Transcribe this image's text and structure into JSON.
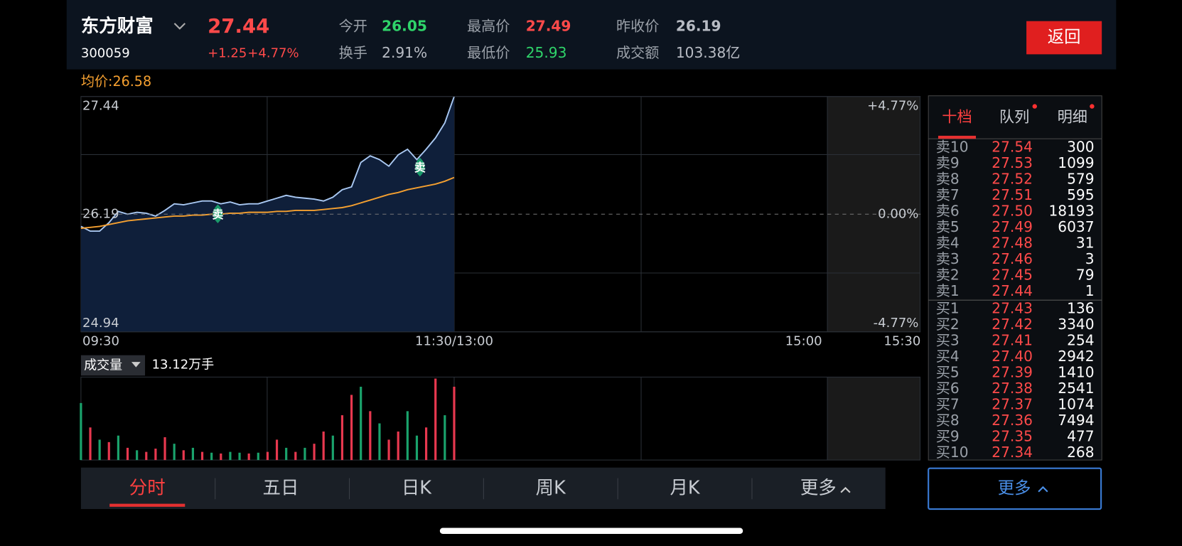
{
  "header": {
    "name": "东方财富",
    "code": "300059",
    "price": "27.44",
    "change": "+1.25",
    "change_pct": "+4.77%",
    "stats": [
      {
        "label": "今开",
        "value": "26.05",
        "color": "#2fd46a"
      },
      {
        "label": "换手",
        "value": "2.91%",
        "color": "#b8bcc4"
      },
      {
        "label": "最高价",
        "value": "27.49",
        "color": "#ff4a4a"
      },
      {
        "label": "最低价",
        "value": "25.93",
        "color": "#2fd46a"
      },
      {
        "label": "昨收价",
        "value": "26.19",
        "color": "#b8bcc4"
      },
      {
        "label": "成交额",
        "value": "103.38亿",
        "color": "#b8bcc4"
      }
    ],
    "back_button": "返回"
  },
  "chart_data": {
    "type": "line",
    "avg_label": "均价:26.58",
    "x": [
      0,
      3,
      6,
      9,
      12,
      15,
      18,
      21,
      24,
      27,
      30,
      33,
      36,
      39,
      42,
      45,
      48,
      51,
      54,
      57,
      60,
      63,
      66,
      69,
      72,
      75,
      78,
      81,
      84,
      87,
      90,
      93,
      96,
      99,
      102,
      105,
      108,
      111,
      114,
      117,
      120
    ],
    "xlim": [
      0,
      270
    ],
    "xticks": [
      {
        "value": 0,
        "label": "09:30"
      },
      {
        "value": 120,
        "label": "11:30/13:00"
      },
      {
        "value": 240,
        "label": "15:00"
      },
      {
        "value": 270,
        "label": "15:30"
      }
    ],
    "ylim": [
      24.94,
      27.44
    ],
    "yticks": [
      27.44,
      26.19,
      24.94
    ],
    "y2lim": [
      -4.77,
      4.77
    ],
    "y2ticks": [
      {
        "value": 4.77,
        "label": "+4.77%"
      },
      {
        "value": 0,
        "label": "0.00%"
      },
      {
        "value": -4.77,
        "label": "-4.77%"
      }
    ],
    "series": [
      {
        "color": "#a9c8f2",
        "values": [
          26.06,
          26.01,
          26.01,
          26.1,
          26.22,
          26.19,
          26.21,
          26.2,
          26.17,
          26.23,
          26.3,
          26.29,
          26.31,
          26.33,
          26.33,
          26.3,
          26.32,
          26.29,
          26.3,
          26.3,
          26.33,
          26.36,
          26.39,
          26.37,
          26.36,
          26.35,
          26.33,
          26.37,
          26.45,
          26.48,
          26.74,
          26.81,
          26.77,
          26.7,
          26.82,
          26.88,
          26.77,
          26.88,
          27.0,
          27.16,
          27.44
        ]
      },
      {
        "color": "#f5a030",
        "values": [
          26.04,
          26.05,
          26.06,
          26.08,
          26.1,
          26.12,
          26.13,
          26.14,
          26.15,
          26.16,
          26.17,
          26.17,
          26.18,
          26.18,
          26.19,
          26.19,
          26.2,
          26.2,
          26.21,
          26.21,
          26.21,
          26.22,
          26.22,
          26.23,
          26.23,
          26.23,
          26.24,
          26.25,
          26.26,
          26.28,
          26.31,
          26.34,
          26.37,
          26.4,
          26.42,
          26.45,
          26.47,
          26.49,
          26.51,
          26.54,
          26.58
        ]
      }
    ],
    "markers": [
      {
        "x": 44,
        "label": "卖"
      },
      {
        "x": 109,
        "label": "卖"
      }
    ],
    "volume": {
      "label": "成交量",
      "total": "13.12万手",
      "values": [
        70,
        40,
        25,
        22,
        30,
        15,
        12,
        10,
        14,
        28,
        20,
        12,
        15,
        10,
        9,
        8,
        10,
        9,
        8,
        9,
        10,
        25,
        15,
        10,
        15,
        20,
        35,
        30,
        55,
        80,
        90,
        60,
        45,
        25,
        35,
        60,
        30,
        40,
        100,
        55,
        90
      ],
      "up": [
        false,
        true,
        false,
        true,
        false,
        true,
        false,
        true,
        true,
        true,
        false,
        true,
        false,
        true,
        false,
        true,
        false,
        false,
        true,
        false,
        true,
        true,
        false,
        true,
        false,
        true,
        true,
        false,
        true,
        true,
        false,
        true,
        false,
        true,
        true,
        false,
        false,
        true,
        true,
        false,
        true
      ]
    }
  },
  "order_book": {
    "tabs": [
      "十档",
      "队列",
      "明细"
    ],
    "asks": [
      {
        "label": "卖10",
        "price": "27.54",
        "volume": "300"
      },
      {
        "label": "卖9",
        "price": "27.53",
        "volume": "1099"
      },
      {
        "label": "卖8",
        "price": "27.52",
        "volume": "579"
      },
      {
        "label": "卖7",
        "price": "27.51",
        "volume": "595"
      },
      {
        "label": "卖6",
        "price": "27.50",
        "volume": "18193"
      },
      {
        "label": "卖5",
        "price": "27.49",
        "volume": "6037"
      },
      {
        "label": "卖4",
        "price": "27.48",
        "volume": "31"
      },
      {
        "label": "卖3",
        "price": "27.46",
        "volume": "3"
      },
      {
        "label": "卖2",
        "price": "27.45",
        "volume": "79"
      },
      {
        "label": "卖1",
        "price": "27.44",
        "volume": "1"
      }
    ],
    "bids": [
      {
        "label": "买1",
        "price": "27.43",
        "volume": "136"
      },
      {
        "label": "买2",
        "price": "27.42",
        "volume": "3340"
      },
      {
        "label": "买3",
        "price": "27.41",
        "volume": "254"
      },
      {
        "label": "买4",
        "price": "27.40",
        "volume": "2942"
      },
      {
        "label": "买5",
        "price": "27.39",
        "volume": "1410"
      },
      {
        "label": "买6",
        "price": "27.38",
        "volume": "2541"
      },
      {
        "label": "买7",
        "price": "27.37",
        "volume": "1074"
      },
      {
        "label": "买8",
        "price": "27.36",
        "volume": "7494"
      },
      {
        "label": "买9",
        "price": "27.35",
        "volume": "477"
      },
      {
        "label": "买10",
        "price": "27.34",
        "volume": "268"
      }
    ],
    "more_button": "更多"
  },
  "tabs": [
    "分时",
    "五日",
    "日K",
    "周K",
    "月K",
    "更多"
  ]
}
